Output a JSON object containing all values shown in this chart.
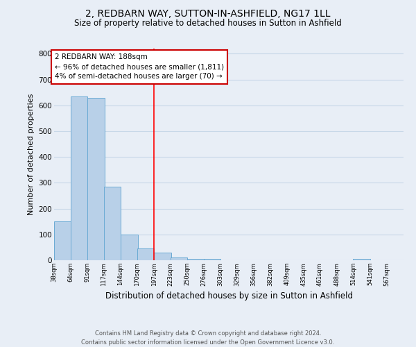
{
  "title": "2, REDBARN WAY, SUTTON-IN-ASHFIELD, NG17 1LL",
  "subtitle": "Size of property relative to detached houses in Sutton in Ashfield",
  "xlabel": "Distribution of detached houses by size in Sutton in Ashfield",
  "ylabel": "Number of detached properties",
  "footer_line1": "Contains HM Land Registry data © Crown copyright and database right 2024.",
  "footer_line2": "Contains public sector information licensed under the Open Government Licence v3.0.",
  "annotation_line1": "2 REDBARN WAY: 188sqm",
  "annotation_line2": "← 96% of detached houses are smaller (1,811)",
  "annotation_line3": "4% of semi-detached houses are larger (70) →",
  "bin_labels": [
    "38sqm",
    "64sqm",
    "91sqm",
    "117sqm",
    "144sqm",
    "170sqm",
    "197sqm",
    "223sqm",
    "250sqm",
    "276sqm",
    "303sqm",
    "329sqm",
    "356sqm",
    "382sqm",
    "409sqm",
    "435sqm",
    "461sqm",
    "488sqm",
    "514sqm",
    "541sqm",
    "567sqm"
  ],
  "bin_left_edges": [
    38,
    64,
    91,
    117,
    144,
    170,
    197,
    223,
    250,
    276,
    303,
    329,
    356,
    382,
    409,
    435,
    461,
    488,
    514,
    541,
    567
  ],
  "bar_heights": [
    150,
    635,
    630,
    285,
    100,
    45,
    30,
    10,
    5,
    5,
    0,
    0,
    0,
    0,
    0,
    0,
    0,
    0,
    5,
    0,
    0
  ],
  "bar_color": "#b8d0e8",
  "bar_edge_color": "#6aaad4",
  "redline_x": 197,
  "ylim": [
    0,
    820
  ],
  "yticks": [
    0,
    100,
    200,
    300,
    400,
    500,
    600,
    700,
    800
  ],
  "grid_color": "#c8d8e8",
  "background_color": "#e8eef6",
  "title_fontsize": 10,
  "subtitle_fontsize": 8.5,
  "xlabel_fontsize": 8.5,
  "ylabel_fontsize": 8,
  "annotation_fontsize": 7.5,
  "annotation_box_color": "#ffffff",
  "annotation_box_edge_color": "#cc0000",
  "footer_fontsize": 6,
  "footer_color": "#555555"
}
